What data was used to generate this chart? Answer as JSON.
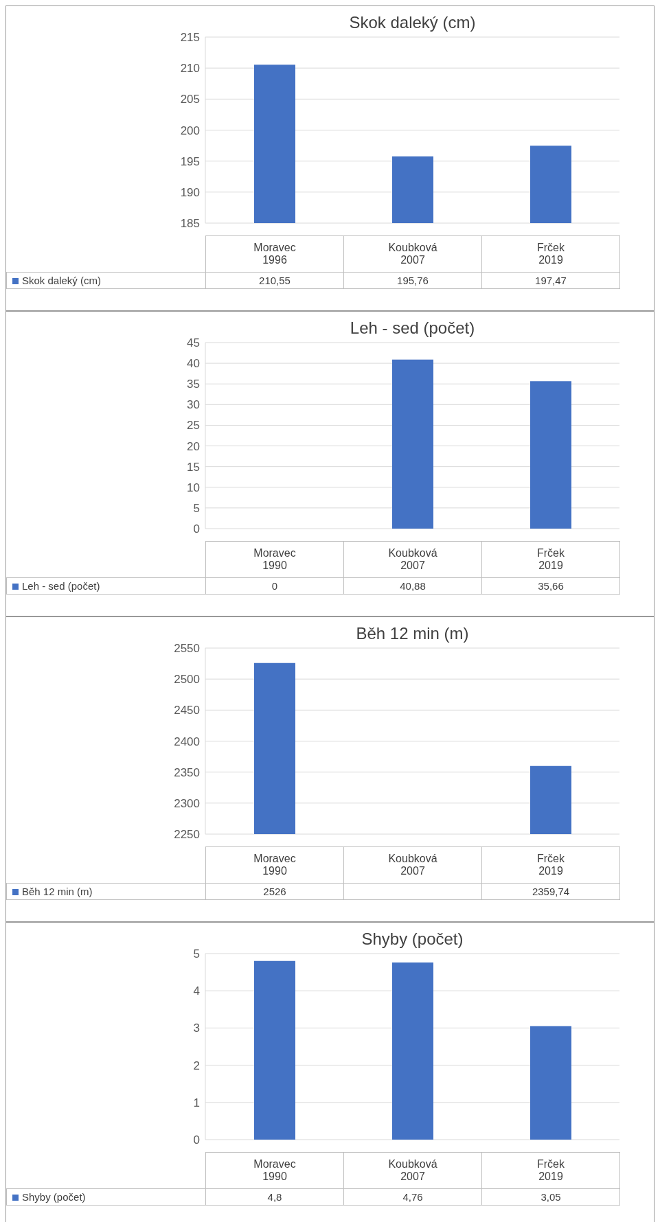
{
  "chart_data": [
    {
      "type": "bar",
      "title": "Skok daleký (cm)",
      "categories": [
        "Moravec\n1996",
        "Koubková\n2007",
        "Frček\n2019"
      ],
      "series": [
        {
          "name": "Skok daleký (cm)",
          "color": "#4472c4",
          "values": [
            210.55,
            195.76,
            197.47
          ],
          "value_labels": [
            "210,55",
            "195,76",
            "197,47"
          ]
        }
      ],
      "ylim": [
        185,
        215
      ],
      "yticks": [
        185,
        190,
        195,
        200,
        205,
        210,
        215
      ],
      "grid": "y"
    },
    {
      "type": "bar",
      "title": "Leh - sed (počet)",
      "categories": [
        "Moravec\n1990",
        "Koubková\n2007",
        "Frček\n2019"
      ],
      "series": [
        {
          "name": "Leh - sed (počet)",
          "color": "#4472c4",
          "values": [
            0,
            40.88,
            35.66
          ],
          "value_labels": [
            "0",
            "40,88",
            "35,66"
          ]
        }
      ],
      "ylim": [
        0,
        45
      ],
      "yticks": [
        0,
        5,
        10,
        15,
        20,
        25,
        30,
        35,
        40,
        45
      ],
      "grid": "y"
    },
    {
      "type": "bar",
      "title": "Běh 12 min (m)",
      "categories": [
        "Moravec\n1990",
        "Koubková\n2007",
        "Frček\n2019"
      ],
      "series": [
        {
          "name": "Běh 12 min (m)",
          "color": "#4472c4",
          "values": [
            2526,
            null,
            2359.74
          ],
          "value_labels": [
            "2526",
            null,
            "2359,74"
          ]
        }
      ],
      "ylim": [
        2250,
        2550
      ],
      "yticks": [
        2250,
        2300,
        2350,
        2400,
        2450,
        2500,
        2550
      ],
      "grid": "y"
    },
    {
      "type": "bar",
      "title": "Shyby (počet)",
      "categories": [
        "Moravec\n1990",
        "Koubková\n2007",
        "Frček\n2019"
      ],
      "series": [
        {
          "name": "Shyby (počet)",
          "color": "#4472c4",
          "values": [
            4.8,
            4.76,
            3.05
          ],
          "value_labels": [
            "4,8",
            "4,76",
            "3,05"
          ]
        }
      ],
      "ylim": [
        0,
        5
      ],
      "yticks": [
        0,
        1,
        2,
        3,
        4,
        5
      ],
      "grid": "y"
    }
  ]
}
